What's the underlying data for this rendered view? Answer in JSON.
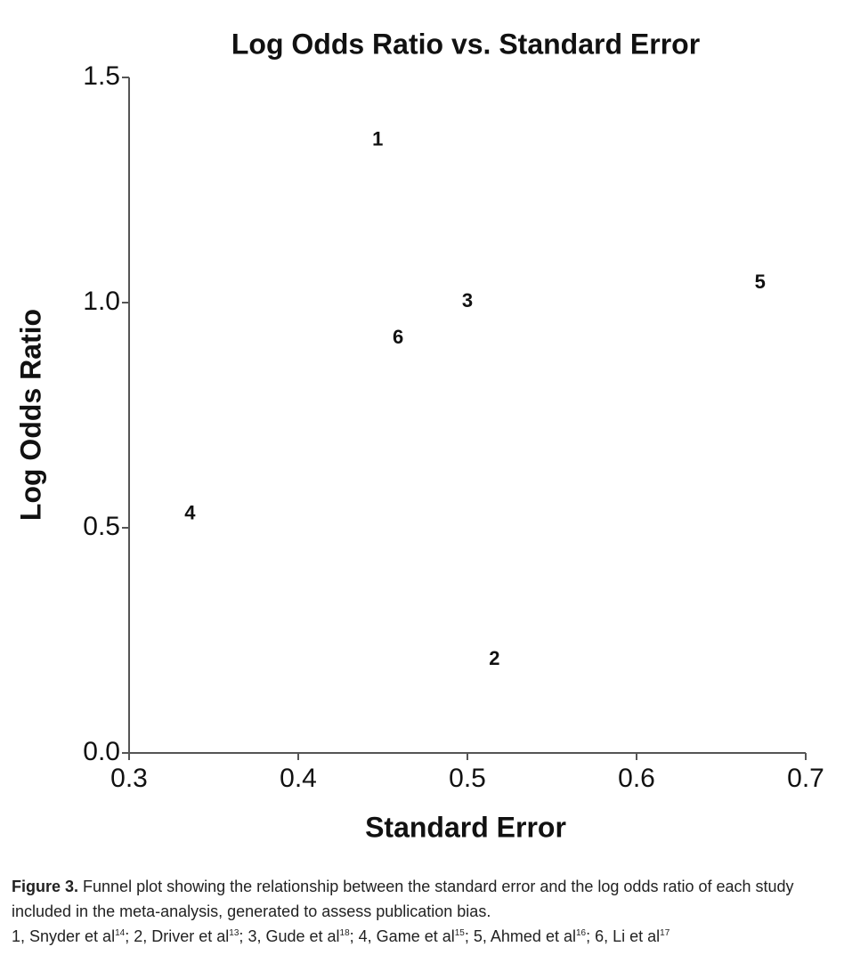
{
  "chart_data": {
    "type": "scatter",
    "title": "Log Odds Ratio vs. Standard Error",
    "x_label": "Standard Error",
    "y_label": "Log Odds Ratio",
    "x": [
      0.447,
      0.516,
      0.5,
      0.336,
      0.673,
      0.459
    ],
    "values": [
      1.36,
      0.207,
      1.002,
      0.53,
      1.043,
      0.921
    ],
    "labels": [
      "1",
      "2",
      "3",
      "4",
      "5",
      "6"
    ],
    "color": "#111111",
    "xlim": [
      0.3,
      0.7
    ],
    "xticks": [
      0.3,
      0.4,
      0.5,
      0.6,
      0.7
    ],
    "ylim": [
      0,
      1.5
    ],
    "yticks": [
      {
        "value": 0,
        "label": "0.0"
      },
      0.5,
      {
        "value": 1,
        "label": "1.0"
      },
      1.5
    ],
    "grid": false
  },
  "caption": {
    "label": "Figure 3.",
    "text": "Funnel plot showing the relationship between the standard error and the log odds ratio of each study included in the meta-analysis, generated to assess publication bias.",
    "refs": [
      {
        "text": "1, Snyder et al",
        "sup": "14",
        "after": ";"
      },
      {
        "text": "2, Driver et al",
        "sup": "13",
        "after": ";"
      },
      {
        "text": "3, Gude et al",
        "sup": "18",
        "after": ";"
      },
      {
        "text": "4, Game et al",
        "sup": "15",
        "after": ";"
      },
      {
        "text": "5, Ahmed et al",
        "sup": "16",
        "after": ";"
      },
      {
        "text": "6, Li et al",
        "sup": "17"
      }
    ]
  }
}
